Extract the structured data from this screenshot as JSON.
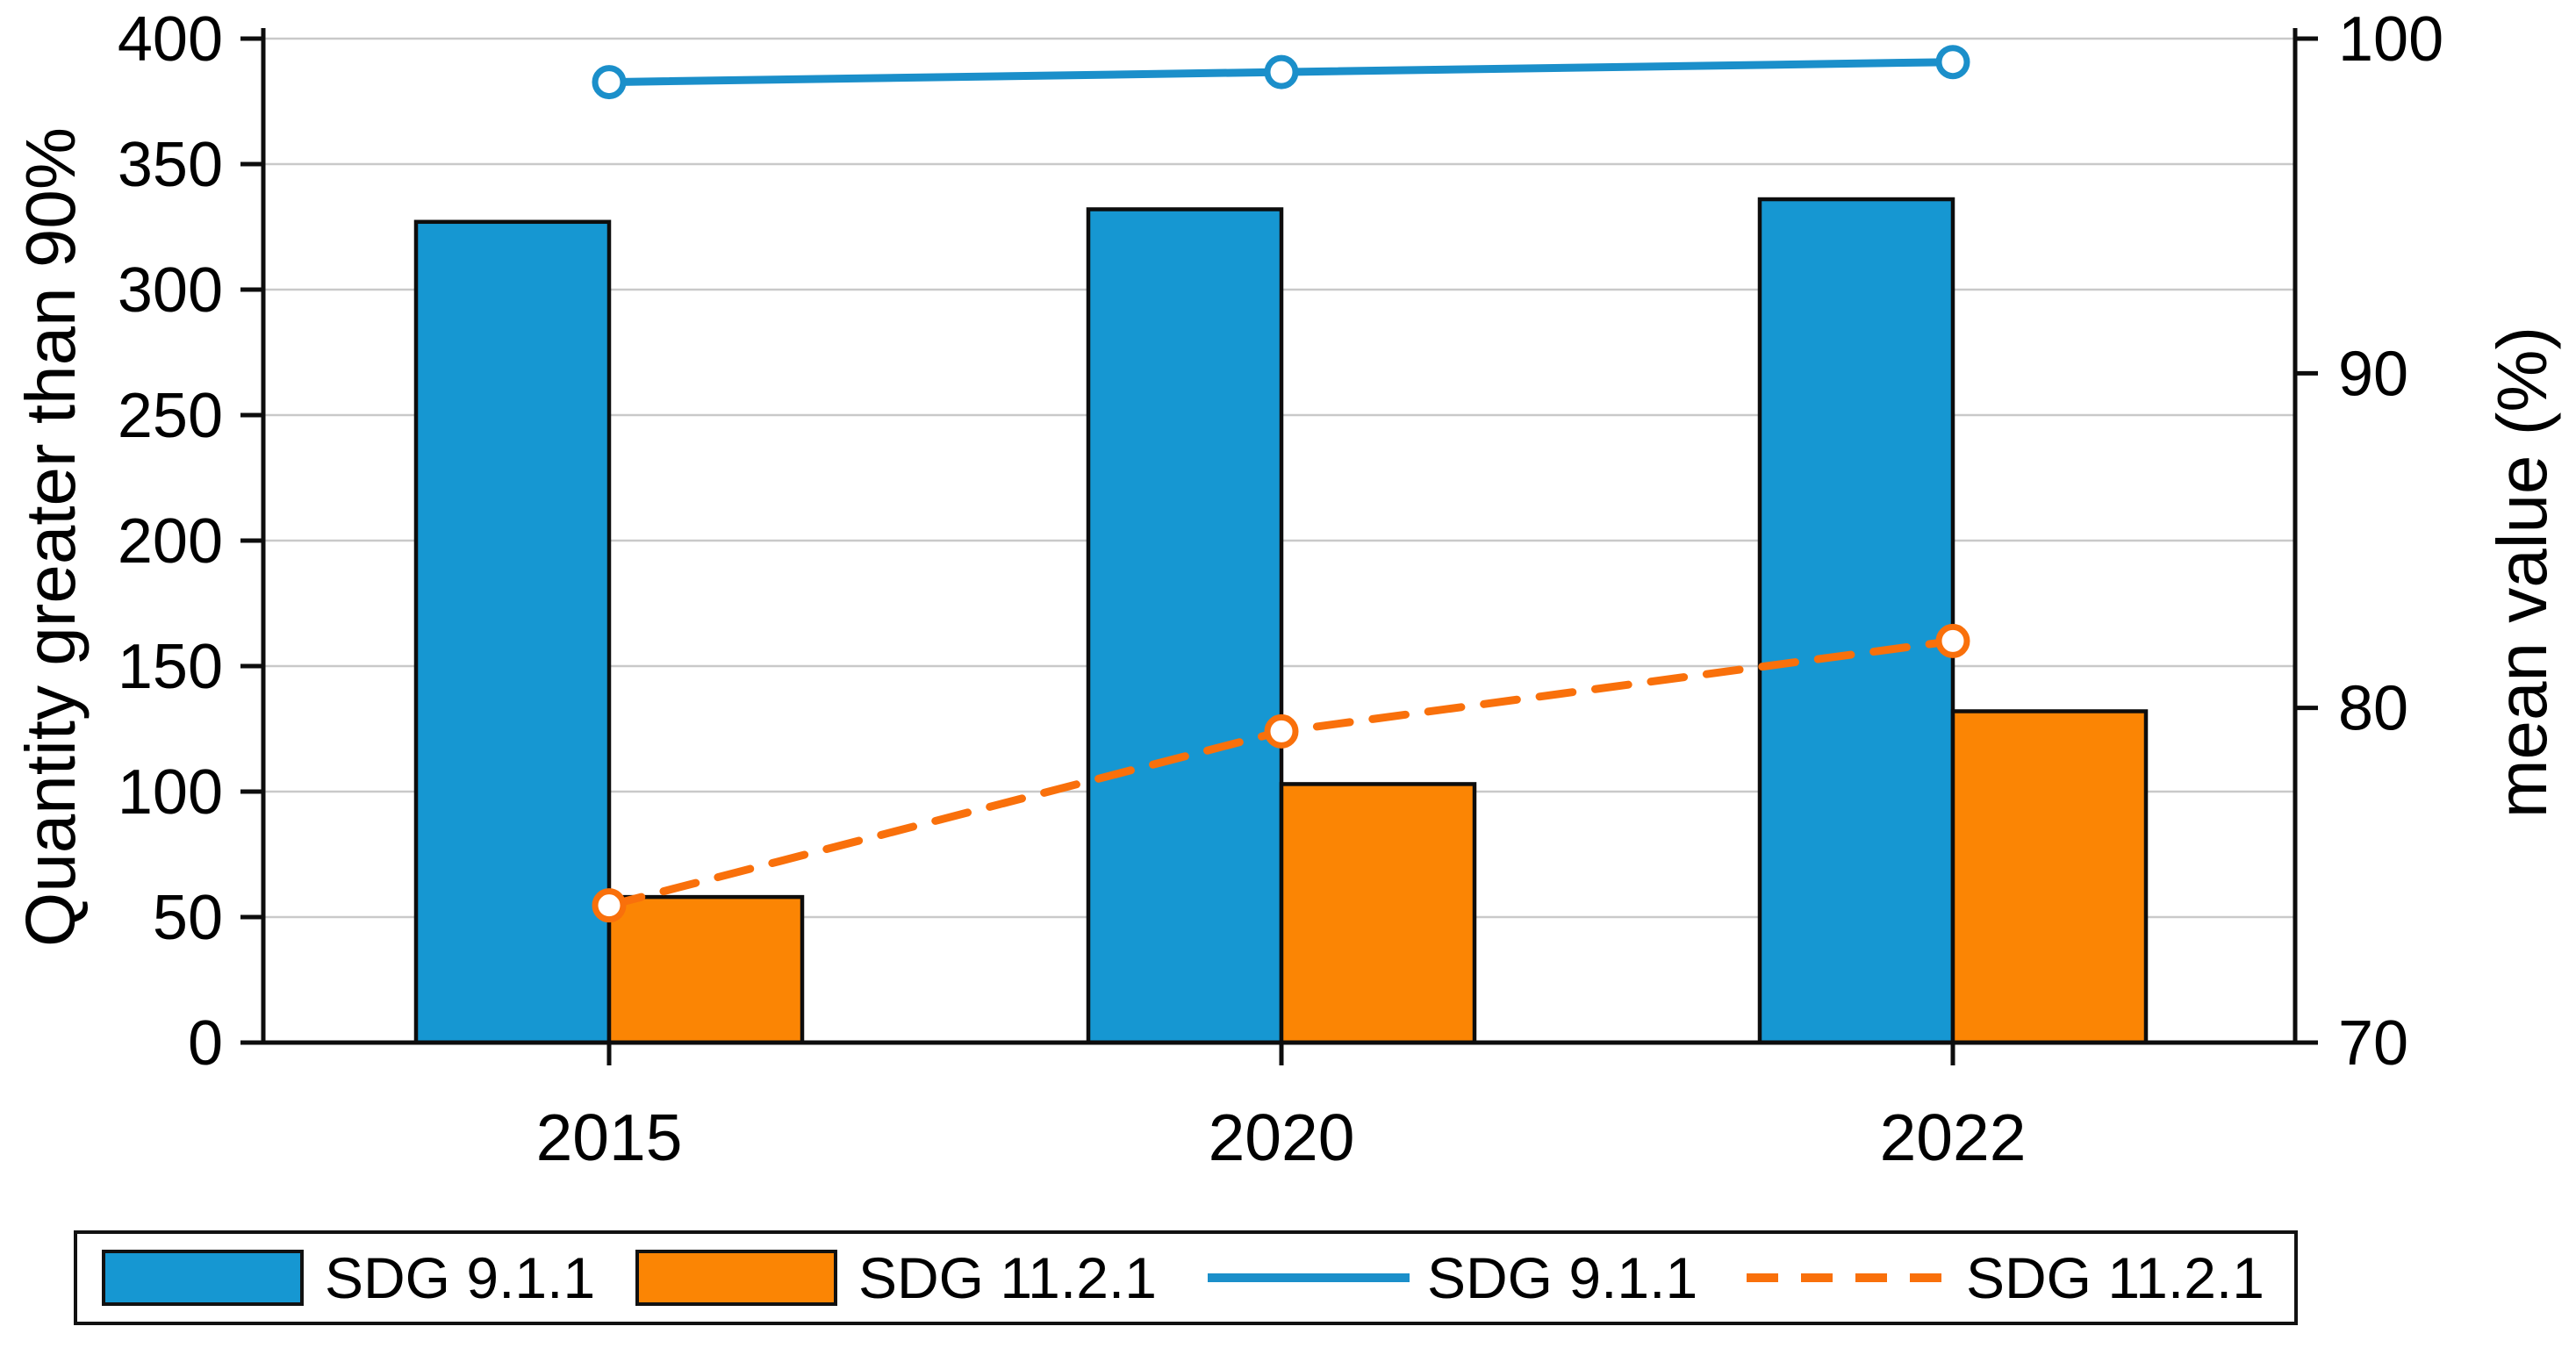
{
  "chart_data": {
    "type": "bar+line (dual y-axis)",
    "categories": [
      "2015",
      "2020",
      "2022"
    ],
    "bar_series": [
      {
        "name": "SDG 9.1.1",
        "axis": "left",
        "color": "#1697d2",
        "edge_color": "#0d0d0d",
        "values": [
          327,
          332,
          336
        ]
      },
      {
        "name": "SDG 11.2.1",
        "axis": "left",
        "color": "#fb8504",
        "edge_color": "#0d0d0d",
        "values": [
          58,
          103,
          132
        ]
      }
    ],
    "line_series": [
      {
        "name": "SDG 9.1.1",
        "axis": "right",
        "color": "#1b8fca",
        "style": "solid",
        "marker": "open-circle",
        "values": [
          98.7,
          99.0,
          99.3
        ]
      },
      {
        "name": "SDG 11.2.1",
        "axis": "right",
        "color": "#f9700b",
        "style": "dashed",
        "marker": "open-circle",
        "values": [
          74.1,
          79.3,
          82.0
        ]
      }
    ],
    "left_axis": {
      "label": "Quantity greater than 90%",
      "min": 0,
      "max": 400,
      "ticks": [
        0,
        50,
        100,
        150,
        200,
        250,
        300,
        350,
        400
      ]
    },
    "right_axis": {
      "label": "mean value (%)",
      "min": 70,
      "max": 100,
      "ticks": [
        70,
        80,
        90,
        100
      ]
    },
    "x_axis": {
      "tick_labels": [
        "2015",
        "2020",
        "2022"
      ]
    },
    "grid": {
      "horizontal": true,
      "at_left_ticks_step": 50,
      "color": "#c9c9c9"
    },
    "legend": {
      "position": "bottom",
      "entries": [
        {
          "label": "SDG 9.1.1",
          "symbol": "filled-rect",
          "color": "#1697d2"
        },
        {
          "label": "SDG 11.2.1",
          "symbol": "filled-rect",
          "color": "#fb8504"
        },
        {
          "label": "SDG 9.1.1",
          "symbol": "solid-line",
          "color": "#1b8fca"
        },
        {
          "label": "SDG 11.2.1",
          "symbol": "dashed-line",
          "color": "#f9700b"
        }
      ]
    }
  },
  "colors": {
    "background": "#ffffff",
    "spine": "#0d0d0d",
    "gridline": "#c9c9c9",
    "marker_fill": "#ffffff"
  }
}
